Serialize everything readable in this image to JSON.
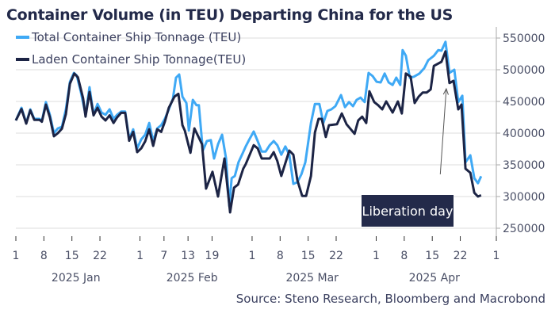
{
  "chart_data": {
    "type": "line",
    "title": "Container Volume (in TEU) Departing China for the US",
    "x_unit": "days since 2025-01-01",
    "xlim": [
      0,
      120
    ],
    "ylim": [
      225000,
      560000
    ],
    "y_axis_side": "right",
    "grid": true,
    "legend_position": "top-left",
    "y_ticks": [
      250000,
      300000,
      350000,
      400000,
      450000,
      500000,
      550000
    ],
    "y_tick_labels": [
      "250000",
      "300000",
      "350000",
      "400000",
      "450000",
      "500000",
      "550000"
    ],
    "x_ticks": [
      {
        "day": 0,
        "label": "1"
      },
      {
        "day": 7,
        "label": "8"
      },
      {
        "day": 14,
        "label": "15"
      },
      {
        "day": 21,
        "label": "22"
      },
      {
        "day": 31,
        "label": "1"
      },
      {
        "day": 37,
        "label": "7"
      },
      {
        "day": 43,
        "label": "13"
      },
      {
        "day": 49,
        "label": "19"
      },
      {
        "day": 59,
        "label": "1"
      },
      {
        "day": 66,
        "label": "8"
      },
      {
        "day": 73,
        "label": "15"
      },
      {
        "day": 80,
        "label": "22"
      },
      {
        "day": 90,
        "label": "1"
      },
      {
        "day": 97,
        "label": "8"
      },
      {
        "day": 104,
        "label": "15"
      },
      {
        "day": 111,
        "label": "22"
      },
      {
        "day": 120,
        "label": "1"
      }
    ],
    "months": [
      {
        "center_day": 15,
        "label": "2025 Jan"
      },
      {
        "center_day": 44,
        "label": "2025 Feb"
      },
      {
        "center_day": 74,
        "label": "2025 Mar"
      },
      {
        "center_day": 104.5,
        "label": "2025 Apr"
      }
    ],
    "series": [
      {
        "name": "Total Container Ship Tonnage (TEU)",
        "color": "#3fa9f5",
        "points": [
          [
            0,
            420000
          ],
          [
            1.4,
            440000
          ],
          [
            2.6,
            416000
          ],
          [
            3.6,
            437500
          ],
          [
            4.6,
            422500
          ],
          [
            5.9,
            422500
          ],
          [
            6.5,
            419000
          ],
          [
            7.5,
            449000
          ],
          [
            8.5,
            429000
          ],
          [
            9.5,
            400000
          ],
          [
            10.5,
            407500
          ],
          [
            11.5,
            410000
          ],
          [
            12.5,
            437500
          ],
          [
            13.5,
            481000
          ],
          [
            14.5,
            495000
          ],
          [
            15.2,
            491000
          ],
          [
            16.2,
            466000
          ],
          [
            17.4,
            429000
          ],
          [
            18.4,
            472500
          ],
          [
            19.4,
            429000
          ],
          [
            20.4,
            446000
          ],
          [
            21.4,
            432500
          ],
          [
            22.4,
            429000
          ],
          [
            23.4,
            437500
          ],
          [
            24.4,
            422500
          ],
          [
            25.3,
            429000
          ],
          [
            26.3,
            434000
          ],
          [
            27.3,
            434000
          ],
          [
            28.3,
            391000
          ],
          [
            29.3,
            406000
          ],
          [
            30.3,
            376000
          ],
          [
            31.3,
            390000
          ],
          [
            32.3,
            397500
          ],
          [
            33.3,
            416000
          ],
          [
            34.3,
            387500
          ],
          [
            35.3,
            407500
          ],
          [
            36.3,
            412500
          ],
          [
            37.2,
            422500
          ],
          [
            38.2,
            437500
          ],
          [
            39.2,
            454000
          ],
          [
            40,
            487500
          ],
          [
            40.8,
            492500
          ],
          [
            41.6,
            457500
          ],
          [
            42.6,
            447500
          ],
          [
            43.2,
            404000
          ],
          [
            44.2,
            452500
          ],
          [
            45.1,
            444000
          ],
          [
            45.7,
            444000
          ],
          [
            46.7,
            372500
          ],
          [
            47.7,
            387500
          ],
          [
            48.7,
            389000
          ],
          [
            49.5,
            360000
          ],
          [
            50.5,
            382500
          ],
          [
            51.5,
            397500
          ],
          [
            52.5,
            360000
          ],
          [
            53.3,
            285000
          ],
          [
            53.9,
            329000
          ],
          [
            54.7,
            332500
          ],
          [
            55.6,
            354000
          ],
          [
            56.6,
            367500
          ],
          [
            57.4,
            379000
          ],
          [
            58.4,
            391000
          ],
          [
            59.4,
            402500
          ],
          [
            60.4,
            387500
          ],
          [
            61.4,
            371000
          ],
          [
            62.4,
            371000
          ],
          [
            63.4,
            381000
          ],
          [
            64.4,
            387500
          ],
          [
            65.3,
            381000
          ],
          [
            66.3,
            366000
          ],
          [
            67.3,
            379000
          ],
          [
            68.3,
            366000
          ],
          [
            69.3,
            320000
          ],
          [
            70.3,
            322500
          ],
          [
            71.3,
            335000
          ],
          [
            72.3,
            354000
          ],
          [
            73.7,
            416000
          ],
          [
            74.7,
            446000
          ],
          [
            75.8,
            446000
          ],
          [
            76.8,
            416000
          ],
          [
            77.8,
            435000
          ],
          [
            78.8,
            437500
          ],
          [
            79.8,
            442500
          ],
          [
            81.2,
            460000
          ],
          [
            82.2,
            441000
          ],
          [
            83.2,
            449000
          ],
          [
            84.2,
            442500
          ],
          [
            85.1,
            452500
          ],
          [
            86.1,
            456000
          ],
          [
            87.1,
            449000
          ],
          [
            88.1,
            495000
          ],
          [
            89.1,
            490000
          ],
          [
            90.1,
            481000
          ],
          [
            91.1,
            480000
          ],
          [
            92.1,
            494000
          ],
          [
            93.1,
            480000
          ],
          [
            94.1,
            476000
          ],
          [
            95,
            487500
          ],
          [
            96,
            476000
          ],
          [
            96.6,
            531000
          ],
          [
            97.4,
            522000
          ],
          [
            98.4,
            487500
          ],
          [
            99.4,
            489000
          ],
          [
            100.8,
            494000
          ],
          [
            102,
            502500
          ],
          [
            103,
            515000
          ],
          [
            104.4,
            522000
          ],
          [
            105.5,
            531000
          ],
          [
            106.3,
            530000
          ],
          [
            107.3,
            544000
          ],
          [
            108.3,
            495000
          ],
          [
            109.5,
            500000
          ],
          [
            110.5,
            449000
          ],
          [
            111.5,
            459000
          ],
          [
            112.3,
            354000
          ],
          [
            113.5,
            365000
          ],
          [
            114.5,
            329000
          ],
          [
            115.4,
            321000
          ],
          [
            116.2,
            332000
          ]
        ]
      },
      {
        "name": "Laden Container Ship Tonnage(TEU)",
        "color": "#1c2445",
        "points": [
          [
            0,
            420000
          ],
          [
            1.4,
            438000
          ],
          [
            2.6,
            415000
          ],
          [
            3.6,
            436000
          ],
          [
            4.6,
            421000
          ],
          [
            5.9,
            421000
          ],
          [
            6.5,
            418000
          ],
          [
            7.5,
            445000
          ],
          [
            8.5,
            425000
          ],
          [
            9.5,
            395000
          ],
          [
            10.5,
            400000
          ],
          [
            11.5,
            407000
          ],
          [
            12.5,
            430000
          ],
          [
            13.5,
            478000
          ],
          [
            14.6,
            494000
          ],
          [
            15.5,
            488000
          ],
          [
            16.8,
            455000
          ],
          [
            17.4,
            426000
          ],
          [
            18.4,
            465000
          ],
          [
            19.4,
            428000
          ],
          [
            20.4,
            440000
          ],
          [
            21.4,
            426000
          ],
          [
            22.4,
            420000
          ],
          [
            23.4,
            428000
          ],
          [
            24.4,
            416000
          ],
          [
            25.3,
            425000
          ],
          [
            26.3,
            432000
          ],
          [
            27.3,
            432000
          ],
          [
            28.3,
            388000
          ],
          [
            29.3,
            402000
          ],
          [
            30.3,
            370000
          ],
          [
            31.3,
            376000
          ],
          [
            32.3,
            387000
          ],
          [
            33.3,
            406000
          ],
          [
            34.3,
            380000
          ],
          [
            35.3,
            406000
          ],
          [
            36.3,
            402000
          ],
          [
            37.2,
            418000
          ],
          [
            38.2,
            440000
          ],
          [
            39.6,
            457500
          ],
          [
            40.6,
            462000
          ],
          [
            41.6,
            412500
          ],
          [
            42.2,
            404000
          ],
          [
            43.6,
            369000
          ],
          [
            44.6,
            407500
          ],
          [
            46.5,
            382500
          ],
          [
            47.5,
            312500
          ],
          [
            49.1,
            339000
          ],
          [
            50.5,
            300000
          ],
          [
            52.1,
            360000
          ],
          [
            53.5,
            275000
          ],
          [
            54.5,
            314000
          ],
          [
            55.5,
            319000
          ],
          [
            56.8,
            344000
          ],
          [
            57.4,
            351000
          ],
          [
            59.4,
            381000
          ],
          [
            60.4,
            376000
          ],
          [
            61.4,
            360000
          ],
          [
            63.4,
            360000
          ],
          [
            64.4,
            370000
          ],
          [
            65.3,
            356000
          ],
          [
            66.3,
            332500
          ],
          [
            68.3,
            372500
          ],
          [
            69.3,
            366000
          ],
          [
            70.3,
            326000
          ],
          [
            71.5,
            301000
          ],
          [
            72.5,
            301000
          ],
          [
            73.7,
            332500
          ],
          [
            74.7,
            401000
          ],
          [
            75.6,
            422500
          ],
          [
            76.4,
            422500
          ],
          [
            77.4,
            394000
          ],
          [
            78.2,
            412500
          ],
          [
            80.2,
            414000
          ],
          [
            81.4,
            431000
          ],
          [
            82.6,
            414000
          ],
          [
            84.6,
            399000
          ],
          [
            85.5,
            420000
          ],
          [
            86.5,
            426000
          ],
          [
            87.5,
            416000
          ],
          [
            88.3,
            466000
          ],
          [
            89.5,
            449000
          ],
          [
            90.5,
            444000
          ],
          [
            91.5,
            437500
          ],
          [
            92.5,
            450000
          ],
          [
            94.1,
            432500
          ],
          [
            95.4,
            450000
          ],
          [
            96.4,
            431000
          ],
          [
            97.4,
            494000
          ],
          [
            98.6,
            489000
          ],
          [
            99.6,
            447500
          ],
          [
            100.6,
            457500
          ],
          [
            101.6,
            464000
          ],
          [
            102.6,
            464000
          ],
          [
            103.6,
            469000
          ],
          [
            104.4,
            506000
          ],
          [
            106.3,
            512500
          ],
          [
            107.3,
            529000
          ],
          [
            108.3,
            479000
          ],
          [
            109.3,
            482500
          ],
          [
            110.5,
            437500
          ],
          [
            111.3,
            445000
          ],
          [
            112.3,
            344000
          ],
          [
            113.5,
            337500
          ],
          [
            114.5,
            306000
          ],
          [
            115.4,
            300000
          ],
          [
            116.2,
            302000
          ]
        ]
      }
    ],
    "annotation": {
      "label": "Liberation day",
      "arrow_from": [
        106,
        335000
      ],
      "arrow_to": [
        107.5,
        470000
      ],
      "box_color": "#232a4a"
    }
  },
  "header": {
    "title": "Container Volume (in TEU) Departing China for the US"
  },
  "legend": [
    {
      "label": "Total Container Ship Tonnage (TEU)",
      "color": "#3fa9f5"
    },
    {
      "label": "Laden Container Ship Tonnage(TEU)",
      "color": "#1c2445"
    }
  ],
  "footer": {
    "source": "Source: Steno Research, Bloomberg and Macrobond"
  }
}
